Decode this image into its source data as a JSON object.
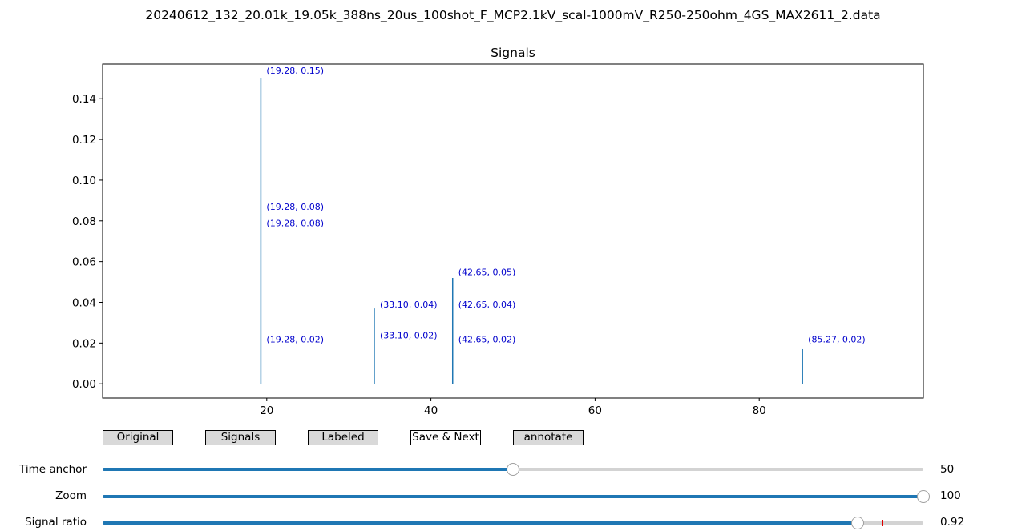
{
  "window": {
    "suptitle": "20240612_132_20.01k_19.05k_388ns_20us_100shot_F_MCP2.1kV_scal-1000mV_R250-250ohm_4GS_MAX2611_2.data"
  },
  "buttons": {
    "original": "Original",
    "signals": "Signals",
    "labeled": "Labeled",
    "save_next": "Save & Next",
    "annotate": "annotate"
  },
  "sliders": {
    "time_anchor": {
      "label": "Time anchor",
      "value": "50",
      "fraction": 0.5
    },
    "zoom": {
      "label": "Zoom",
      "value": "100",
      "fraction": 1.0
    },
    "signal_ratio": {
      "label": "Signal ratio",
      "value": "0.92",
      "fraction": 0.92,
      "marker_fraction": 0.95
    }
  },
  "chart_data": {
    "type": "line",
    "title": "Signals",
    "xlabel": "",
    "ylabel": "",
    "xlim": [
      0,
      100
    ],
    "ylim": [
      -0.007,
      0.157
    ],
    "xticks": [
      20,
      40,
      60,
      80
    ],
    "xtick_labels": [
      "20",
      "40",
      "60",
      "80"
    ],
    "yticks": [
      0.0,
      0.02,
      0.04,
      0.06,
      0.08,
      0.1,
      0.12,
      0.14
    ],
    "ytick_labels": [
      "0.00",
      "0.02",
      "0.04",
      "0.06",
      "0.08",
      "0.10",
      "0.12",
      "0.14"
    ],
    "grid": false,
    "line_color": "#1f77b4",
    "annotation_color": "#0000cc",
    "spikes": [
      {
        "x": 19.28,
        "y": 0.15
      },
      {
        "x": 33.1,
        "y": 0.037
      },
      {
        "x": 42.65,
        "y": 0.052
      },
      {
        "x": 85.27,
        "y": 0.017
      }
    ],
    "annotations": [
      {
        "x": 19.28,
        "y": 0.15,
        "text": "(19.28, 0.15)"
      },
      {
        "x": 19.28,
        "y": 0.083,
        "text": "(19.28, 0.08)"
      },
      {
        "x": 19.28,
        "y": 0.075,
        "text": "(19.28, 0.08)"
      },
      {
        "x": 19.28,
        "y": 0.018,
        "text": "(19.28, 0.02)"
      },
      {
        "x": 33.1,
        "y": 0.035,
        "text": "(33.10, 0.04)"
      },
      {
        "x": 33.1,
        "y": 0.02,
        "text": "(33.10, 0.02)"
      },
      {
        "x": 42.65,
        "y": 0.051,
        "text": "(42.65, 0.05)"
      },
      {
        "x": 42.65,
        "y": 0.035,
        "text": "(42.65, 0.04)"
      },
      {
        "x": 42.65,
        "y": 0.018,
        "text": "(42.65, 0.02)"
      },
      {
        "x": 85.27,
        "y": 0.018,
        "text": "(85.27, 0.02)"
      }
    ]
  }
}
